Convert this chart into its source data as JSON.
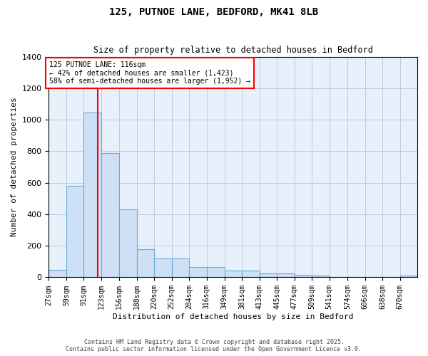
{
  "title": "125, PUTNOE LANE, BEDFORD, MK41 8LB",
  "subtitle": "Size of property relative to detached houses in Bedford",
  "xlabel": "Distribution of detached houses by size in Bedford",
  "ylabel": "Number of detached properties",
  "bar_color": "#cde0f5",
  "bar_edge_color": "#6aaad4",
  "background_color": "#e8f0fb",
  "grid_color": "#b8cce4",
  "bin_labels": [
    "27sqm",
    "59sqm",
    "91sqm",
    "123sqm",
    "156sqm",
    "188sqm",
    "220sqm",
    "252sqm",
    "284sqm",
    "316sqm",
    "349sqm",
    "381sqm",
    "413sqm",
    "445sqm",
    "477sqm",
    "509sqm",
    "541sqm",
    "574sqm",
    "606sqm",
    "638sqm",
    "670sqm"
  ],
  "bin_edges": [
    27,
    59,
    91,
    123,
    156,
    188,
    220,
    252,
    284,
    316,
    349,
    381,
    413,
    445,
    477,
    509,
    541,
    574,
    606,
    638,
    670
  ],
  "bar_heights": [
    47,
    580,
    1045,
    790,
    430,
    180,
    120,
    120,
    65,
    65,
    45,
    45,
    25,
    25,
    15,
    10,
    0,
    0,
    0,
    0,
    10
  ],
  "red_line_x": 116,
  "ylim": [
    0,
    1400
  ],
  "yticks": [
    0,
    200,
    400,
    600,
    800,
    1000,
    1200,
    1400
  ],
  "annotation_title": "125 PUTNOE LANE: 116sqm",
  "annotation_line1": "← 42% of detached houses are smaller (1,423)",
  "annotation_line2": "58% of semi-detached houses are larger (1,952) →",
  "footer_line1": "Contains HM Land Registry data © Crown copyright and database right 2025.",
  "footer_line2": "Contains public sector information licensed under the Open Government Licence v3.0."
}
